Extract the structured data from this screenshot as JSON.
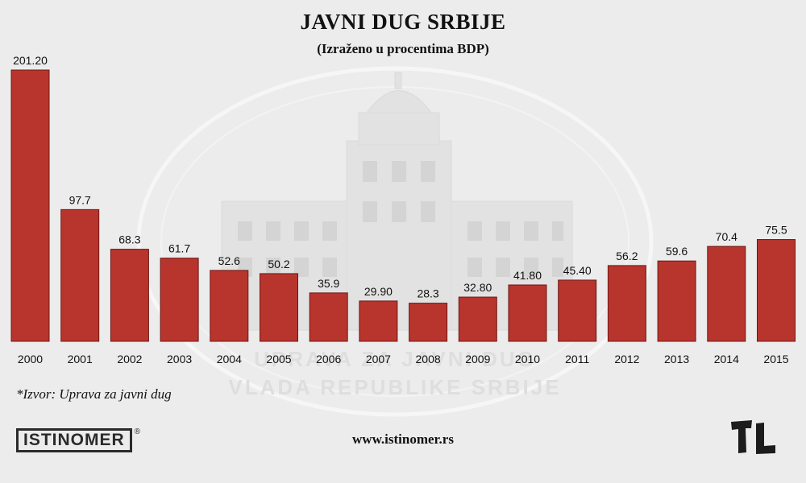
{
  "header": {
    "title": "JAVNI DUG SRBIJE",
    "subtitle": "(Izraženo u procentima BDP)"
  },
  "footer": {
    "source": "*Izvor: Uprava za javni dug",
    "website": "www.istinomer.rs",
    "logo_text": "ISTINOMER",
    "logo_mark": "®"
  },
  "watermark": {
    "line1": "UPRAVA ZA JAVNI DUG",
    "line2": "VLADA REPUBLIKE SRBIJE"
  },
  "colors": {
    "bar_fill": "#b8352e",
    "bar_stroke": "#6e1713",
    "background": "#ececec"
  },
  "chart_data": {
    "type": "bar",
    "title": "JAVNI DUG SRBIJE",
    "subtitle": "(Izraženo u procentima BDP)",
    "categories": [
      "2000",
      "2001",
      "2002",
      "2003",
      "2004",
      "2005",
      "2006",
      "2007",
      "2008",
      "2009",
      "2010",
      "2011",
      "2012",
      "2013",
      "2014",
      "2015"
    ],
    "values": [
      201.2,
      97.7,
      68.3,
      61.7,
      52.6,
      50.2,
      35.9,
      29.9,
      28.3,
      32.8,
      41.8,
      45.4,
      56.2,
      59.6,
      70.4,
      75.5
    ],
    "value_labels": [
      "201.20",
      "97.7",
      "68.3",
      "61.7",
      "52.6",
      "50.2",
      "35.9",
      "29.90",
      "28.3",
      "32.80",
      "41.80",
      "45.40",
      "56.2",
      "59.6",
      "70.4",
      "75.5"
    ],
    "xlabel": "",
    "ylabel": "",
    "ylim": [
      0,
      201.2
    ],
    "grid": false,
    "legend": "none"
  }
}
